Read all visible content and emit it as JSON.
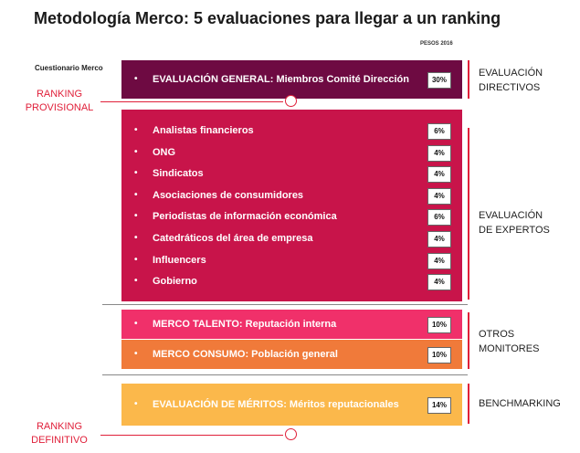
{
  "title": "Metodología Merco: 5 evaluaciones para llegar a un ranking",
  "pesos_label": "PESOS 2016",
  "cuestionario_label": "Cuestionario Merco",
  "ranking_provisional": [
    "RANKING",
    "PROVISIONAL"
  ],
  "ranking_definitivo": [
    "RANKING",
    "DEFINITIVO"
  ],
  "colors": {
    "directivos": "#6e0a42",
    "expertos": "#c8144a",
    "talento": "#f0306a",
    "consumo": "#f07a3a",
    "meritos": "#fbb84b",
    "accent": "#e0203a"
  },
  "groups": {
    "directivos": {
      "label": [
        "EVALUACIÓN",
        "DIRECTIVOS"
      ],
      "items": [
        {
          "text": "EVALUACIÓN GENERAL: Miembros Comité Dirección",
          "weight": "30%"
        }
      ]
    },
    "expertos": {
      "label": [
        "EVALUACIÓN",
        "DE EXPERTOS"
      ],
      "items": [
        {
          "text": "Analistas financieros",
          "weight": "6%"
        },
        {
          "text": "ONG",
          "weight": "4%"
        },
        {
          "text": "Sindicatos",
          "weight": "4%"
        },
        {
          "text": "Asociaciones de consumidores",
          "weight": "4%"
        },
        {
          "text": "Periodistas de información económica",
          "weight": "6%"
        },
        {
          "text": "Catedráticos del área de empresa",
          "weight": "4%"
        },
        {
          "text": "Influencers",
          "weight": "4%"
        },
        {
          "text": "Gobierno",
          "weight": "4%"
        }
      ]
    },
    "otros": {
      "label": [
        "OTROS",
        "MONITORES"
      ],
      "items": [
        {
          "text": "MERCO TALENTO: Reputación interna",
          "weight": "10%"
        },
        {
          "text": "MERCO  CONSUMO: Población general",
          "weight": "10%"
        }
      ]
    },
    "benchmarking": {
      "label": [
        "BENCHMARKING"
      ],
      "items": [
        {
          "text": "EVALUACIÓN DE MÉRITOS: Méritos reputacionales",
          "weight": "14%"
        }
      ]
    }
  },
  "bullet": "•"
}
